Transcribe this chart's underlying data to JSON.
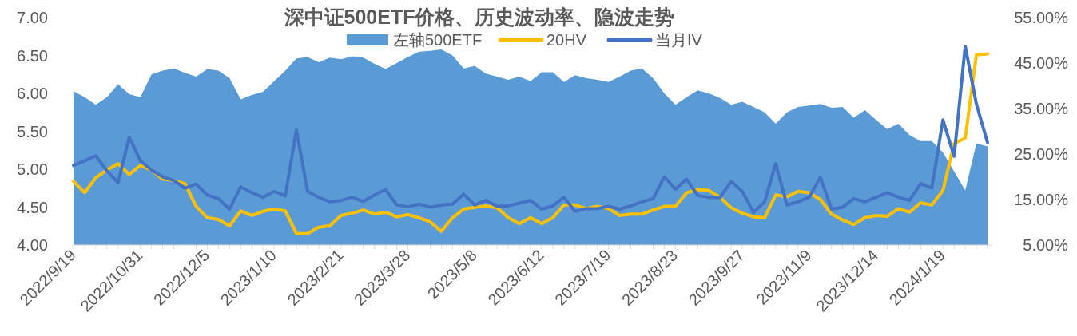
{
  "chart_data": {
    "type": "area",
    "title": "深中证500ETF价格、历史波动率、隐波走势",
    "categories": [
      "2022/9/19",
      null,
      null,
      null,
      null,
      null,
      "2022/10/31",
      null,
      null,
      null,
      null,
      null,
      "2022/12/5",
      null,
      null,
      null,
      null,
      null,
      "2023/1/10",
      null,
      null,
      null,
      null,
      null,
      "2023/2/21",
      null,
      null,
      null,
      null,
      null,
      "2023/3/28",
      null,
      null,
      null,
      null,
      null,
      "2023/5/8",
      null,
      null,
      null,
      null,
      null,
      "2023/6/12",
      null,
      null,
      null,
      null,
      null,
      "2023/7/19",
      null,
      null,
      null,
      null,
      null,
      "2023/8/23",
      null,
      null,
      null,
      null,
      null,
      "2023/9/27",
      null,
      null,
      null,
      null,
      null,
      "2023/11/9",
      null,
      null,
      null,
      null,
      null,
      "2023/12/14",
      null,
      null,
      null,
      null,
      null,
      "2024/1/19",
      null,
      null,
      null,
      null
    ],
    "series": [
      {
        "name": "左轴500ETF",
        "color": "#5b9bd5",
        "values": [
          6.03,
          5.95,
          5.85,
          5.95,
          6.12,
          5.99,
          5.95,
          6.25,
          6.3,
          6.33,
          6.27,
          6.22,
          6.32,
          6.3,
          6.2,
          5.92,
          5.98,
          6.02,
          6.16,
          6.3,
          6.46,
          6.48,
          6.41,
          6.47,
          6.45,
          6.49,
          6.47,
          6.39,
          6.32,
          6.4,
          6.48,
          6.55,
          6.56,
          6.58,
          6.5,
          6.33,
          6.36,
          6.26,
          6.22,
          6.18,
          6.22,
          6.16,
          6.28,
          6.28,
          6.15,
          6.24,
          6.2,
          6.18,
          6.15,
          6.22,
          6.3,
          6.33,
          6.2,
          6.0,
          5.85,
          5.95,
          6.04,
          6.0,
          5.94,
          5.85,
          5.89,
          5.82,
          5.75,
          5.6,
          5.75,
          5.82,
          5.84,
          5.86,
          5.81,
          5.82,
          5.68,
          5.78,
          5.65,
          5.53,
          5.6,
          5.45,
          5.37,
          5.37,
          5.22,
          4.97,
          4.72,
          5.34,
          5.3
        ]
      },
      {
        "name": "20HV",
        "type": "line",
        "axis": "y2",
        "color": "#ffc000",
        "values": [
          19.0,
          16.5,
          19.8,
          21.5,
          22.9,
          20.5,
          22.5,
          21.5,
          19.5,
          19.2,
          18.5,
          13.5,
          11.0,
          10.6,
          9.2,
          12.5,
          11.5,
          12.4,
          12.9,
          12.5,
          7.5,
          7.5,
          8.9,
          9.2,
          11.5,
          12.0,
          12.7,
          11.8,
          12.2,
          11.2,
          11.7,
          11.0,
          10.1,
          8.0,
          11.0,
          12.9,
          13.3,
          13.6,
          13.2,
          11.0,
          9.7,
          11.0,
          9.7,
          11.0,
          13.8,
          13.8,
          13.0,
          13.5,
          13.0,
          11.5,
          11.8,
          11.8,
          12.7,
          13.5,
          13.5,
          16.5,
          17.2,
          17.0,
          15.5,
          13.2,
          12.0,
          11.2,
          11.0,
          16.0,
          15.6,
          16.8,
          16.5,
          15.0,
          11.8,
          10.5,
          9.5,
          11.0,
          11.5,
          11.3,
          13.0,
          12.2,
          14.3,
          13.8,
          17.0,
          27.3,
          28.5,
          46.8,
          47.0
        ]
      },
      {
        "name": "当月IV",
        "type": "line",
        "axis": "y2",
        "color": "#4472c4",
        "values": [
          22.5,
          23.5,
          24.6,
          21.3,
          18.7,
          28.7,
          23.5,
          21.5,
          20.0,
          19.2,
          17.5,
          18.4,
          16.0,
          15.2,
          12.9,
          17.8,
          16.5,
          15.5,
          16.8,
          15.8,
          30.3,
          16.8,
          15.5,
          14.5,
          14.8,
          15.5,
          14.6,
          16.0,
          17.2,
          13.8,
          13.4,
          14.0,
          13.3,
          13.8,
          14.0,
          16.2,
          13.8,
          14.8,
          13.5,
          13.6,
          14.2,
          14.8,
          12.9,
          13.6,
          15.5,
          12.4,
          13.0,
          13.0,
          13.5,
          12.9,
          13.6,
          14.5,
          15.2,
          20.0,
          17.3,
          19.5,
          15.9,
          15.5,
          15.4,
          19.0,
          16.8,
          12.2,
          14.5,
          22.9,
          13.8,
          14.5,
          15.5,
          19.9,
          12.9,
          13.3,
          15.2,
          14.5,
          15.5,
          16.5,
          15.5,
          14.8,
          18.5,
          17.5,
          32.5,
          24.5,
          48.7,
          36.0,
          27.5
        ]
      }
    ],
    "ylim": [
      4,
      7
    ],
    "yticks": [
      {
        "value": 4,
        "label": "4.00"
      },
      {
        "value": 4.5,
        "label": "4.50"
      },
      {
        "value": 5,
        "label": "5.00"
      },
      {
        "value": 5.5,
        "label": "5.50"
      },
      {
        "value": 6,
        "label": "6.00"
      },
      {
        "value": 6.5,
        "label": "6.50"
      },
      {
        "value": 7,
        "label": "7.00"
      }
    ],
    "y2lim": [
      5,
      55
    ],
    "y2ticks": [
      {
        "value": 5,
        "label": "5.00%"
      },
      {
        "value": 15,
        "label": "15.00%"
      },
      {
        "value": 25,
        "label": "25.00%"
      },
      {
        "value": 35,
        "label": "35.00%"
      },
      {
        "value": 45,
        "label": "45.00%"
      },
      {
        "value": 55,
        "label": "55.00%"
      }
    ],
    "legend": "top"
  }
}
